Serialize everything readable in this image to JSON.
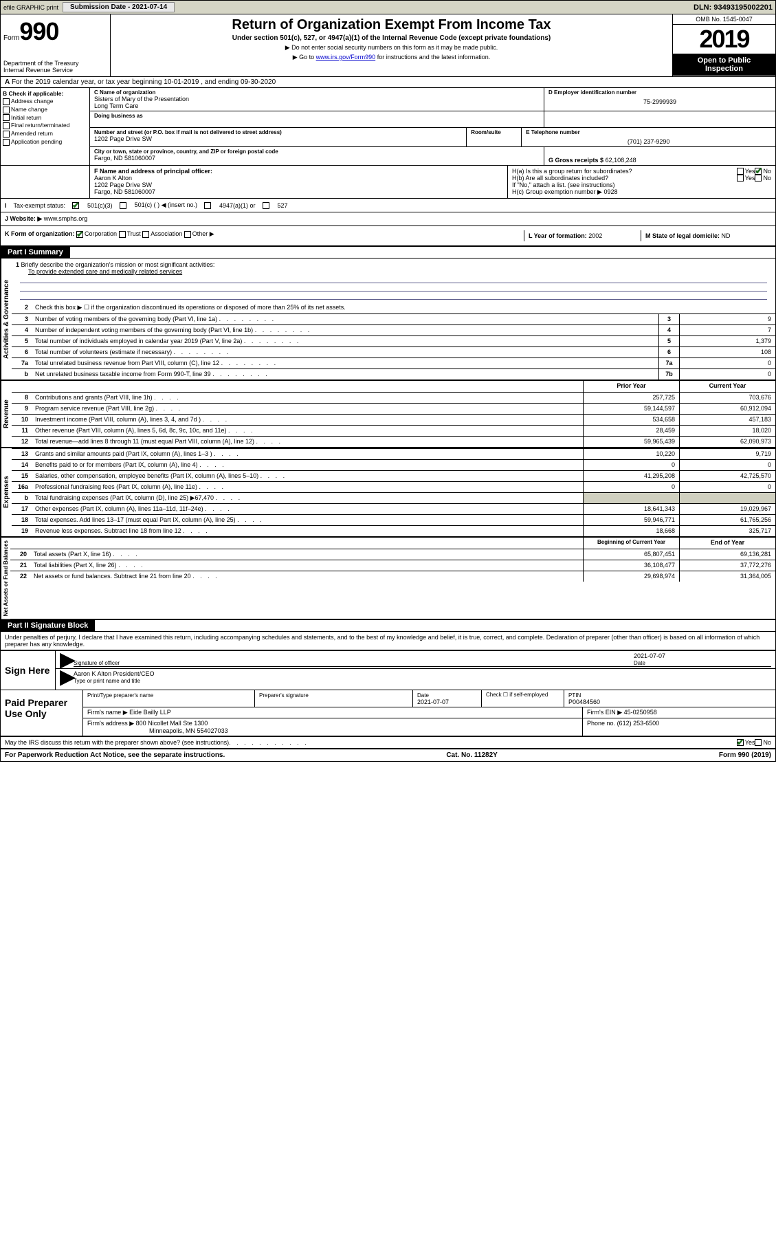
{
  "top": {
    "efile": "efile GRAPHIC print",
    "submission_label": "Submission Date - 2021-07-14",
    "dln": "DLN: 93493195002201"
  },
  "header": {
    "form_word": "Form",
    "form_num": "990",
    "dept": "Department of the Treasury",
    "irs": "Internal Revenue Service",
    "title": "Return of Organization Exempt From Income Tax",
    "sub": "Under section 501(c), 527, or 4947(a)(1) of the Internal Revenue Code (except private foundations)",
    "note1": "▶ Do not enter social security numbers on this form as it may be made public.",
    "note2_pre": "▶ Go to ",
    "note2_link": "www.irs.gov/Form990",
    "note2_post": " for instructions and the latest information.",
    "omb": "OMB No. 1545-0047",
    "year": "2019",
    "inspection1": "Open to Public",
    "inspection2": "Inspection"
  },
  "a": "For the 2019 calendar year, or tax year beginning 10-01-2019   , and ending 09-30-2020",
  "b": {
    "label": "B Check if applicable:",
    "opts": [
      "Address change",
      "Name change",
      "Initial return",
      "Final return/terminated",
      "Amended return",
      "Application pending"
    ]
  },
  "c": {
    "label": "C Name of organization",
    "name1": "Sisters of Mary of the Presentation",
    "name2": "Long Term Care",
    "dba_label": "Doing business as",
    "street_label": "Number and street (or P.O. box if mail is not delivered to street address)",
    "room_label": "Room/suite",
    "street": "1202 Page Drive SW",
    "city_label": "City or town, state or province, country, and ZIP or foreign postal code",
    "city": "Fargo, ND  581060007"
  },
  "d": {
    "label": "D Employer identification number",
    "val": "75-2999939"
  },
  "e": {
    "label": "E Telephone number",
    "val": "(701) 237-9290"
  },
  "g": {
    "label": "G Gross receipts $",
    "val": "62,108,248"
  },
  "f": {
    "label": "F Name and address of principal officer:",
    "name": "Aaron K Alton",
    "street": "1202 Page Drive SW",
    "city": "Fargo, ND  581060007"
  },
  "h": {
    "a_label": "H(a)  Is this a group return for subordinates?",
    "a_yes": "Yes",
    "a_no": "No",
    "b_label": "H(b)  Are all subordinates included?",
    "b_note": "If \"No,\" attach a list. (see instructions)",
    "c_label": "H(c)  Group exemption number ▶",
    "c_val": "0928"
  },
  "i": {
    "label": "Tax-exempt status:",
    "o1": "501(c)(3)",
    "o2": "501(c) (  ) ◀ (insert no.)",
    "o3": "4947(a)(1) or",
    "o4": "527"
  },
  "j": {
    "label": "J   Website: ▶",
    "val": "www.smphs.org"
  },
  "k": {
    "label": "K Form of organization:",
    "o1": "Corporation",
    "o2": "Trust",
    "o3": "Association",
    "o4": "Other ▶"
  },
  "l": {
    "label": "L Year of formation:",
    "val": "2002"
  },
  "m": {
    "label": "M State of legal domicile:",
    "val": "ND"
  },
  "part1": {
    "header": "Part I      Summary",
    "l1": "Briefly describe the organization's mission or most significant activities:",
    "l1_val": "To provide extended care and medically related services",
    "l2": "Check this box ▶ ☐ if the organization discontinued its operations or disposed of more than 25% of its net assets.",
    "rows_single": [
      {
        "n": "3",
        "d": "Number of voting members of the governing body (Part VI, line 1a)",
        "box": "3",
        "v": "9"
      },
      {
        "n": "4",
        "d": "Number of independent voting members of the governing body (Part VI, line 1b)",
        "box": "4",
        "v": "7"
      },
      {
        "n": "5",
        "d": "Total number of individuals employed in calendar year 2019 (Part V, line 2a)",
        "box": "5",
        "v": "1,379"
      },
      {
        "n": "6",
        "d": "Total number of volunteers (estimate if necessary)",
        "box": "6",
        "v": "108"
      },
      {
        "n": "7a",
        "d": "Total unrelated business revenue from Part VIII, column (C), line 12",
        "box": "7a",
        "v": "0"
      },
      {
        "n": "b",
        "d": "Net unrelated business taxable income from Form 990-T, line 39",
        "box": "7b",
        "v": "0"
      }
    ],
    "col_prior": "Prior Year",
    "col_current": "Current Year",
    "revenue": [
      {
        "n": "8",
        "d": "Contributions and grants (Part VIII, line 1h)",
        "p": "257,725",
        "c": "703,676"
      },
      {
        "n": "9",
        "d": "Program service revenue (Part VIII, line 2g)",
        "p": "59,144,597",
        "c": "60,912,094"
      },
      {
        "n": "10",
        "d": "Investment income (Part VIII, column (A), lines 3, 4, and 7d )",
        "p": "534,658",
        "c": "457,183"
      },
      {
        "n": "11",
        "d": "Other revenue (Part VIII, column (A), lines 5, 6d, 8c, 9c, 10c, and 11e)",
        "p": "28,459",
        "c": "18,020"
      },
      {
        "n": "12",
        "d": "Total revenue—add lines 8 through 11 (must equal Part VIII, column (A), line 12)",
        "p": "59,965,439",
        "c": "62,090,973"
      }
    ],
    "expenses": [
      {
        "n": "13",
        "d": "Grants and similar amounts paid (Part IX, column (A), lines 1–3 )",
        "p": "10,220",
        "c": "9,719"
      },
      {
        "n": "14",
        "d": "Benefits paid to or for members (Part IX, column (A), line 4)",
        "p": "0",
        "c": "0"
      },
      {
        "n": "15",
        "d": "Salaries, other compensation, employee benefits (Part IX, column (A), lines 5–10)",
        "p": "41,295,208",
        "c": "42,725,570"
      },
      {
        "n": "16a",
        "d": "Professional fundraising fees (Part IX, column (A), line 11e)",
        "p": "0",
        "c": "0"
      },
      {
        "n": "b",
        "d": "Total fundraising expenses (Part IX, column (D), line 25) ▶67,470",
        "p": "",
        "c": "",
        "shaded": true
      },
      {
        "n": "17",
        "d": "Other expenses (Part IX, column (A), lines 11a–11d, 11f–24e)",
        "p": "18,641,343",
        "c": "19,029,967"
      },
      {
        "n": "18",
        "d": "Total expenses. Add lines 13–17 (must equal Part IX, column (A), line 25)",
        "p": "59,946,771",
        "c": "61,765,256"
      },
      {
        "n": "19",
        "d": "Revenue less expenses. Subtract line 18 from line 12",
        "p": "18,668",
        "c": "325,717"
      }
    ],
    "col_begin": "Beginning of Current Year",
    "col_end": "End of Year",
    "netassets": [
      {
        "n": "20",
        "d": "Total assets (Part X, line 16)",
        "p": "65,807,451",
        "c": "69,136,281"
      },
      {
        "n": "21",
        "d": "Total liabilities (Part X, line 26)",
        "p": "36,108,477",
        "c": "37,772,276"
      },
      {
        "n": "22",
        "d": "Net assets or fund balances. Subtract line 21 from line 20",
        "p": "29,698,974",
        "c": "31,364,005"
      }
    ],
    "vlab1": "Activities & Governance",
    "vlab2": "Revenue",
    "vlab3": "Expenses",
    "vlab4": "Net Assets or Fund Balances"
  },
  "part2": {
    "header": "Part II     Signature Block",
    "penalty": "Under penalties of perjury, I declare that I have examined this return, including accompanying schedules and statements, and to the best of my knowledge and belief, it is true, correct, and complete. Declaration of preparer (other than officer) is based on all information of which preparer has any knowledge.",
    "sign_here": "Sign Here",
    "sig_officer": "Signature of officer",
    "sig_date": "2021-07-07",
    "date_label": "Date",
    "officer_name": "Aaron K Alton  President/CEO",
    "type_label": "Type or print name and title",
    "paid": "Paid Preparer Use Only",
    "prep_name_label": "Print/Type preparer's name",
    "prep_sig_label": "Preparer's signature",
    "prep_date": "2021-07-07",
    "self_emp": "Check ☐ if self-employed",
    "ptin_label": "PTIN",
    "ptin": "P00484560",
    "firm_name_label": "Firm's name   ▶",
    "firm_name": "Eide Bailly LLP",
    "firm_ein_label": "Firm's EIN ▶",
    "firm_ein": "45-0250958",
    "firm_addr_label": "Firm's address ▶",
    "firm_addr1": "800 Nicollet Mall Ste 1300",
    "firm_addr2": "Minneapolis, MN  554027033",
    "phone_label": "Phone no.",
    "phone": "(612) 253-6500",
    "discuss": "May the IRS discuss this return with the preparer shown above? (see instructions)",
    "yes": "Yes",
    "no": "No"
  },
  "footer": {
    "left": "For Paperwork Reduction Act Notice, see the separate instructions.",
    "center": "Cat. No. 11282Y",
    "right": "Form 990 (2019)"
  }
}
